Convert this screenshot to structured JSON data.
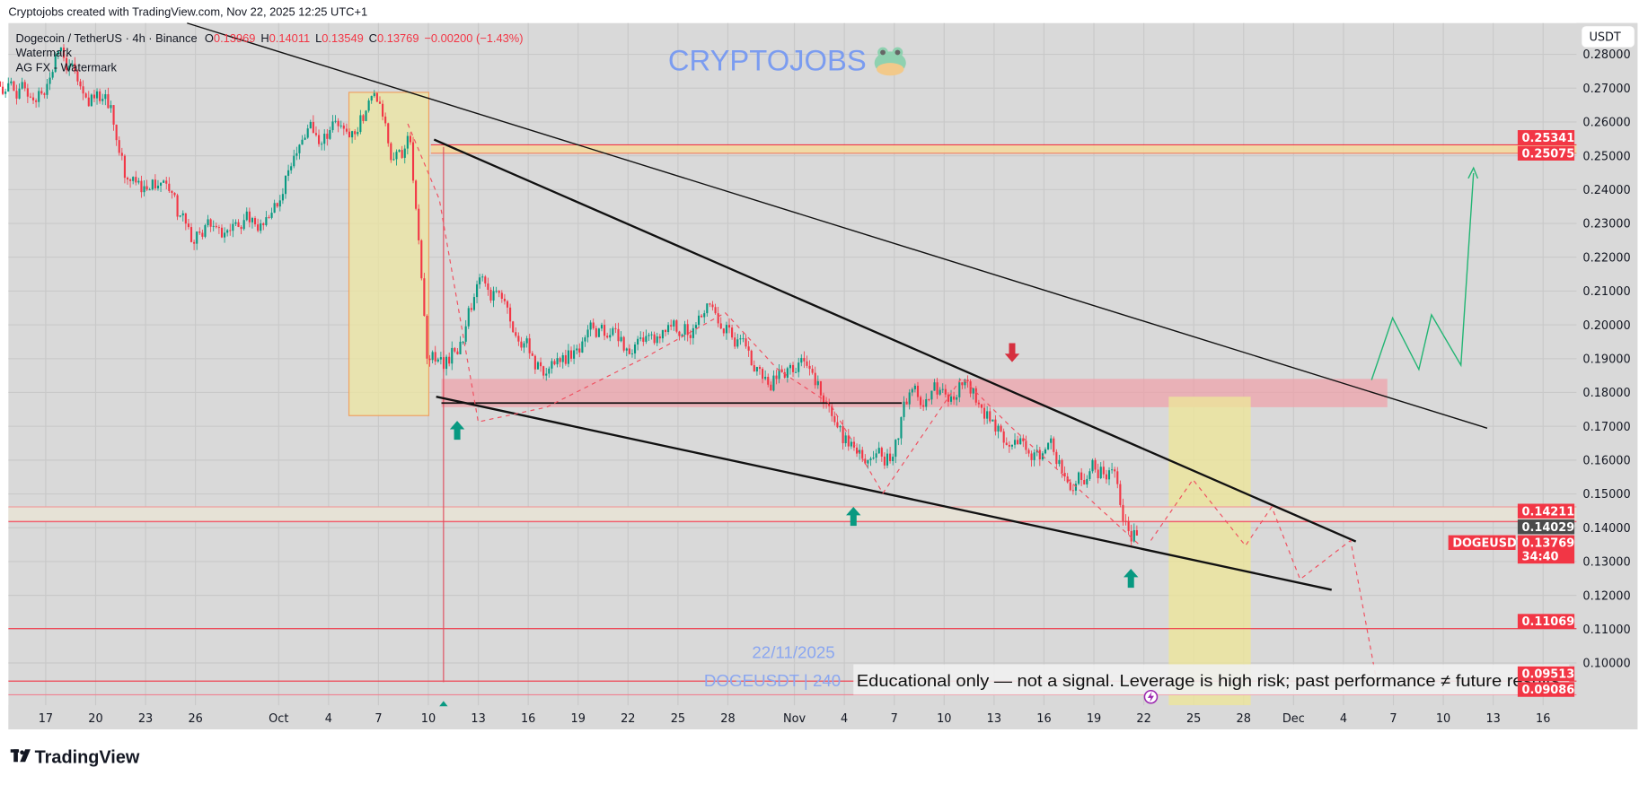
{
  "header": {
    "credit": "Cryptojobs created with TradingView.com, Nov 22, 2025 12:25 UTC+1"
  },
  "legend": {
    "symbol": "Dogecoin / TetherUS · 4h · Binance",
    "o_label": "O",
    "o": "0.13969",
    "h_label": "H",
    "h": "0.14011",
    "l_label": "L",
    "l": "0.13549",
    "c_label": "C",
    "c": "0.13769",
    "change": "−0.00200 (−1.43%)",
    "indicator1": "Watermark",
    "indicator2": "AG FX - Watermark"
  },
  "watermark": {
    "brand": "CRYPTOJOBS",
    "date": "22/11/2025",
    "symbol_tf": "DOGEUSDT | 240"
  },
  "disclaimer": "Educational only — not a signal. Leverage is high risk; past performance ≠ future results.",
  "currency_button": "USDT",
  "price_labels": {
    "zone_top_a": "0.25341",
    "zone_top_b": "0.25075",
    "zone_mid_a": "0.14211",
    "crosshair": "0.14029",
    "symbol": "DOGEUSDT",
    "last": "0.13769",
    "countdown": "34:40",
    "support1": "0.11069",
    "support2": "0.09513",
    "support3": "0.09086"
  },
  "footer": {
    "logo_text": "TradingView"
  },
  "colors": {
    "up": "#089981",
    "down": "#f23645",
    "bg": "#d9d9d9",
    "watermark": "#7b9cf0"
  },
  "chart_data": {
    "type": "candlestick",
    "title": "Dogecoin / TetherUS · 4h · Binance",
    "note": "approximate daily closes traced from the 4h candles, day 0 = Sep 20 2025",
    "start_day": -5,
    "closes": [
      0.272,
      0.2675,
      0.268,
      0.282,
      0.272,
      0.267,
      0.265,
      0.243,
      0.241,
      0.242,
      0.232,
      0.224,
      0.229,
      0.228,
      0.231,
      0.23,
      0.235,
      0.25,
      0.26,
      0.255,
      0.258,
      0.262,
      0.266,
      0.249,
      0.254,
      0.19,
      0.187,
      0.195,
      0.212,
      0.21,
      0.201,
      0.196,
      0.185,
      0.189,
      0.193,
      0.199,
      0.197,
      0.193,
      0.195,
      0.196,
      0.198,
      0.199,
      0.206,
      0.2,
      0.196,
      0.187,
      0.184,
      0.186,
      0.187,
      0.177,
      0.165,
      0.163,
      0.162,
      0.161,
      0.18,
      0.178,
      0.181,
      0.183,
      0.177,
      0.172,
      0.164,
      0.163,
      0.162,
      0.16,
      0.153,
      0.16,
      0.157,
      0.142,
      0.13769
    ],
    "ylim": [
      0.0885,
      0.2855
    ],
    "y_ticks": [
      "0.28000",
      "0.27000",
      "0.26000",
      "0.25000",
      "0.24000",
      "0.23000",
      "0.22000",
      "0.21000",
      "0.20000",
      "0.19000",
      "0.18000",
      "0.17000",
      "0.16000",
      "0.15000",
      "0.14000",
      "0.13000",
      "0.12000",
      "0.11000",
      "0.10000"
    ],
    "x_ticks": [
      {
        "day": -3,
        "label": "17"
      },
      {
        "day": 0,
        "label": "20"
      },
      {
        "day": 3,
        "label": "23"
      },
      {
        "day": 6,
        "label": "26"
      },
      {
        "day": 11,
        "label": "Oct"
      },
      {
        "day": 14,
        "label": "4"
      },
      {
        "day": 17,
        "label": "7"
      },
      {
        "day": 20,
        "label": "10"
      },
      {
        "day": 23,
        "label": "13"
      },
      {
        "day": 26,
        "label": "16"
      },
      {
        "day": 29,
        "label": "19"
      },
      {
        "day": 32,
        "label": "22"
      },
      {
        "day": 35,
        "label": "25"
      },
      {
        "day": 38,
        "label": "28"
      },
      {
        "day": 42,
        "label": "Nov"
      },
      {
        "day": 45,
        "label": "4"
      },
      {
        "day": 48,
        "label": "7"
      },
      {
        "day": 51,
        "label": "10"
      },
      {
        "day": 54,
        "label": "13"
      },
      {
        "day": 57,
        "label": "16"
      },
      {
        "day": 60,
        "label": "19"
      },
      {
        "day": 63,
        "label": "22"
      },
      {
        "day": 66,
        "label": "25"
      },
      {
        "day": 69,
        "label": "28"
      },
      {
        "day": 72,
        "label": "Dec"
      },
      {
        "day": 75,
        "label": "4"
      },
      {
        "day": 78,
        "label": "7"
      },
      {
        "day": 81,
        "label": "10"
      },
      {
        "day": 84,
        "label": "13"
      },
      {
        "day": 87,
        "label": "16"
      }
    ],
    "grid": true
  }
}
